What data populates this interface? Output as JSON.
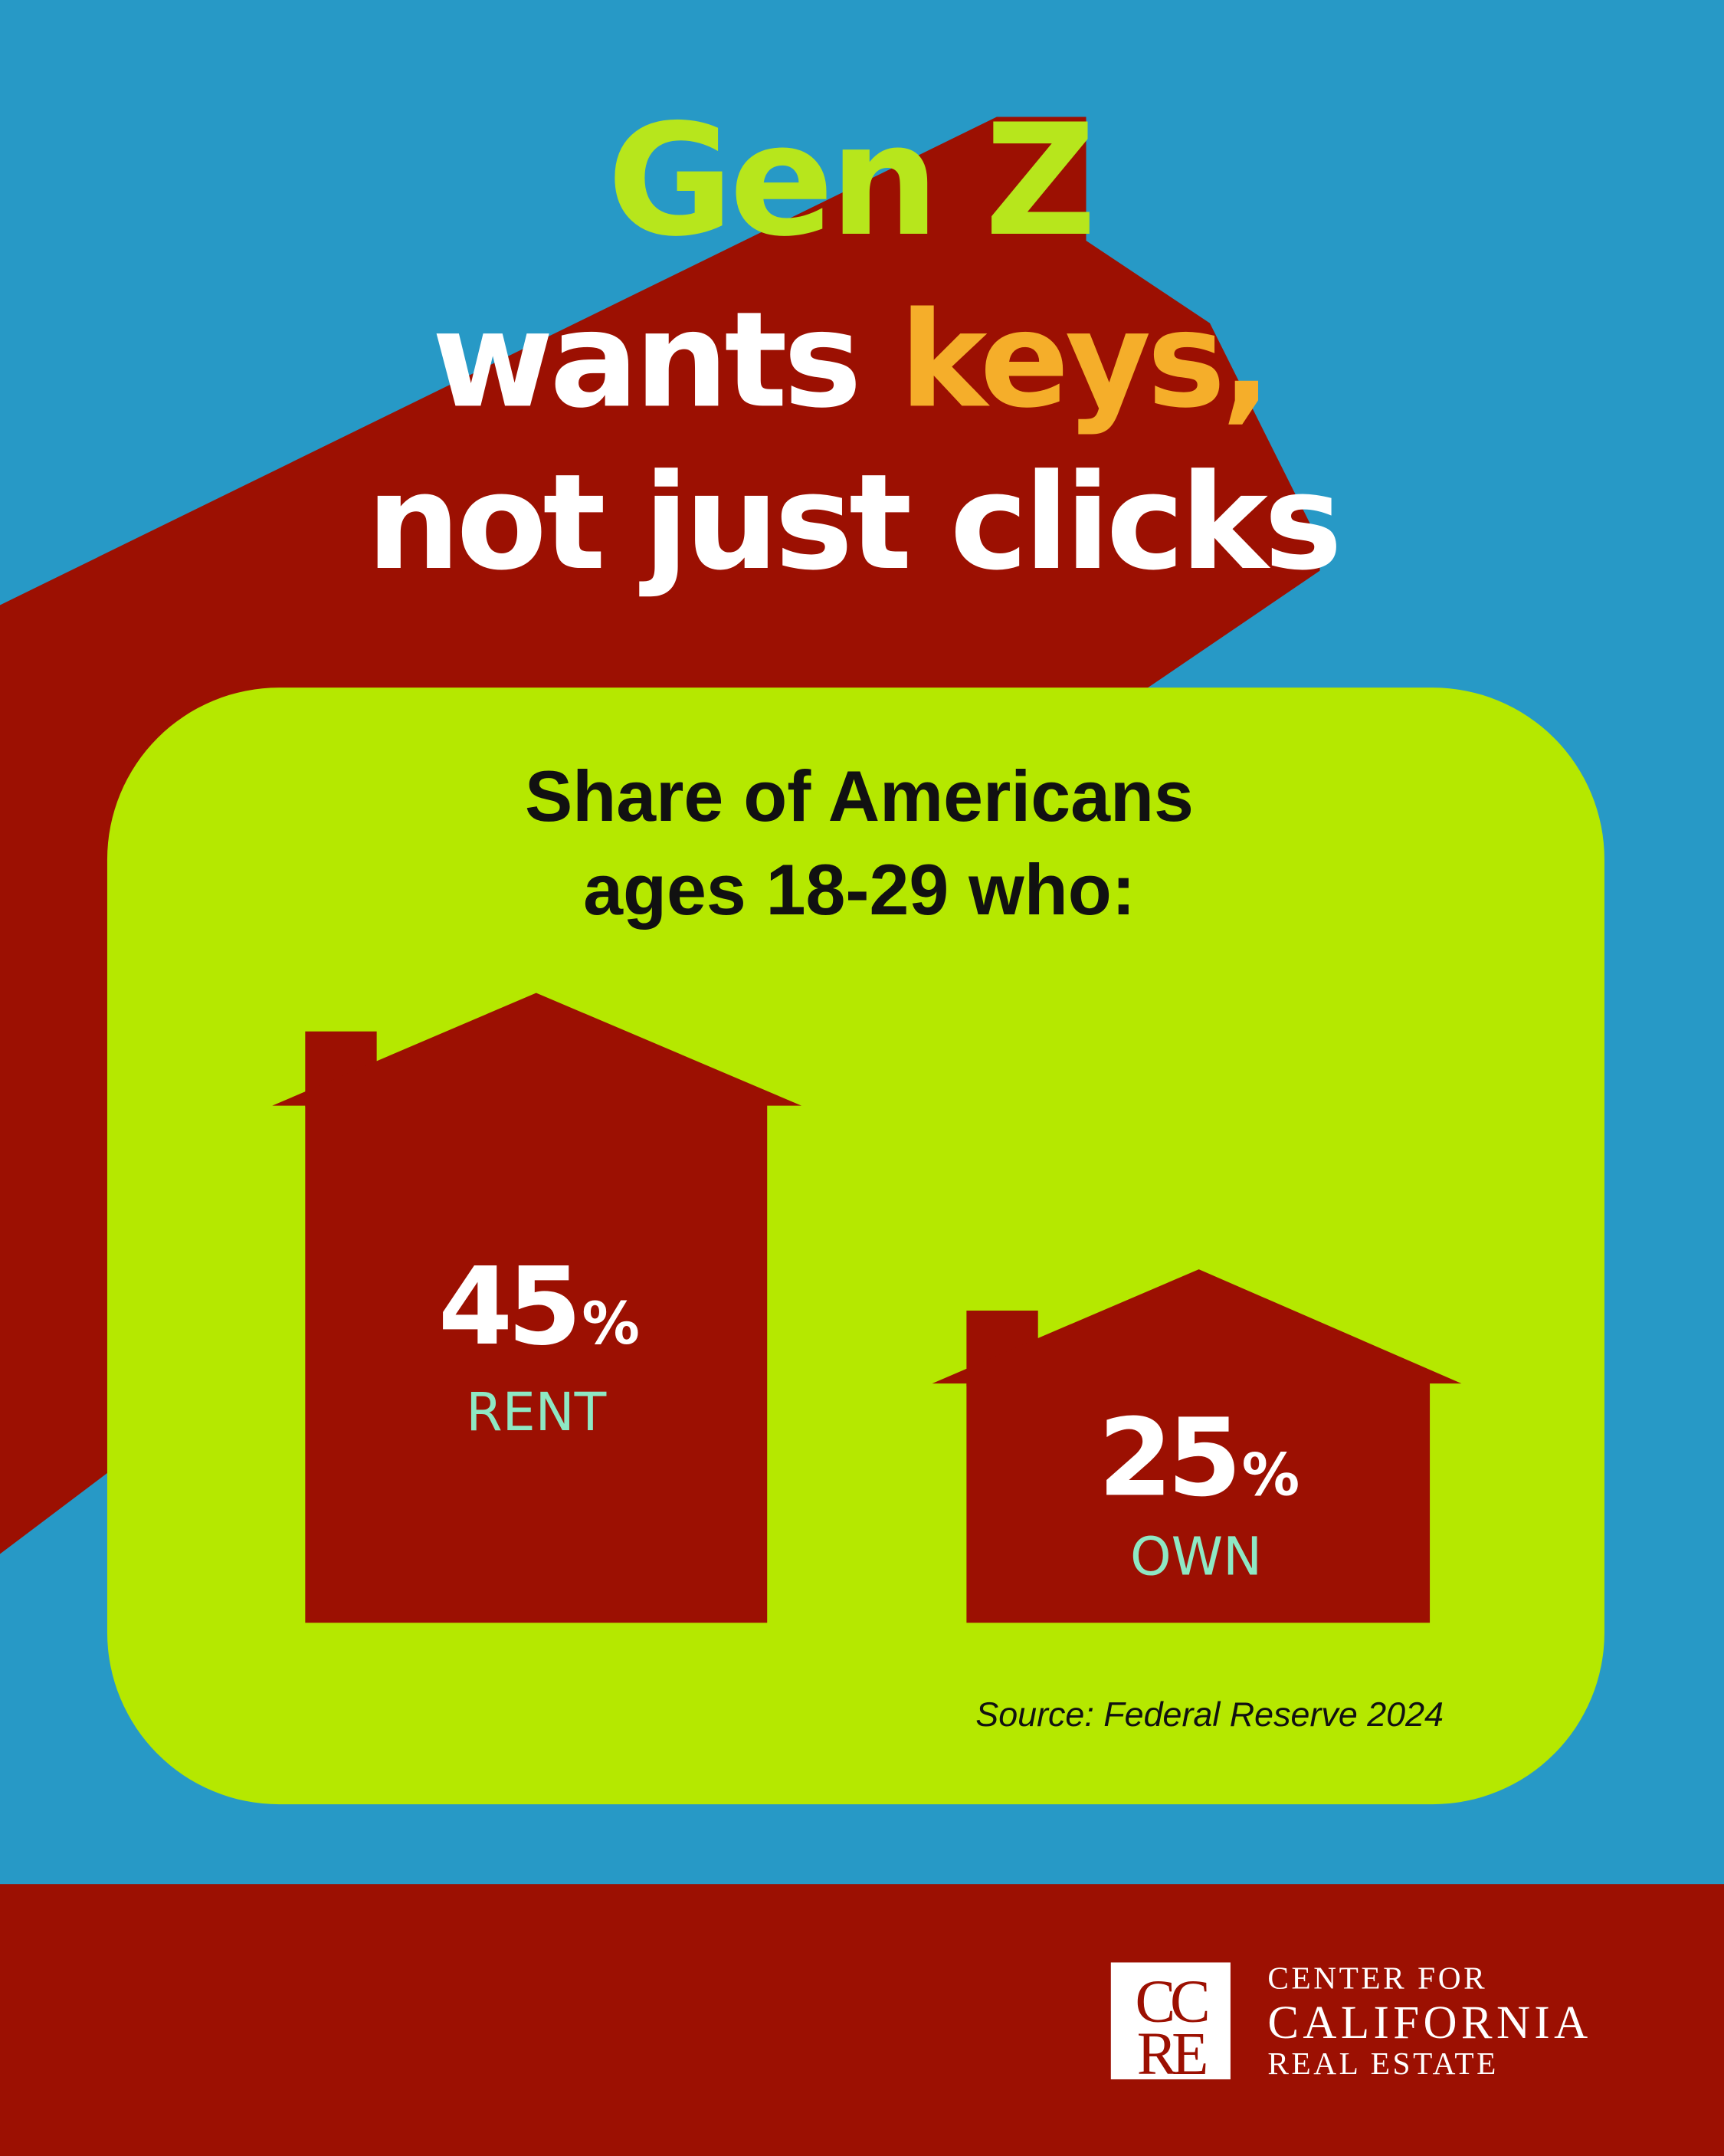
{
  "headline": {
    "line1": "Gen Z",
    "line2_a": "wants ",
    "line2_b": "keys,",
    "line3": "not just clicks"
  },
  "card": {
    "subtitle_line1": "Share of Americans",
    "subtitle_line2": "ages 18-29 who:",
    "stats": [
      {
        "value": "45",
        "unit": "%",
        "label": "RENT",
        "percent": 45
      },
      {
        "value": "25",
        "unit": "%",
        "label": "OWN",
        "percent": 25
      }
    ],
    "source": "Source: Federal Reserve 2024"
  },
  "footer": {
    "logo_letters": "CCRE",
    "org_line1": "CENTER FOR",
    "org_line2": "CALIFORNIA",
    "org_line3": "REAL ESTATE"
  },
  "colors": {
    "background": "#2799c6",
    "dark_red": "#9c1002",
    "lime": "#b5e800",
    "headline_lime": "#b7e61c",
    "accent_orange": "#f5ae2a",
    "mint": "#8ee8c4",
    "white": "#ffffff"
  }
}
